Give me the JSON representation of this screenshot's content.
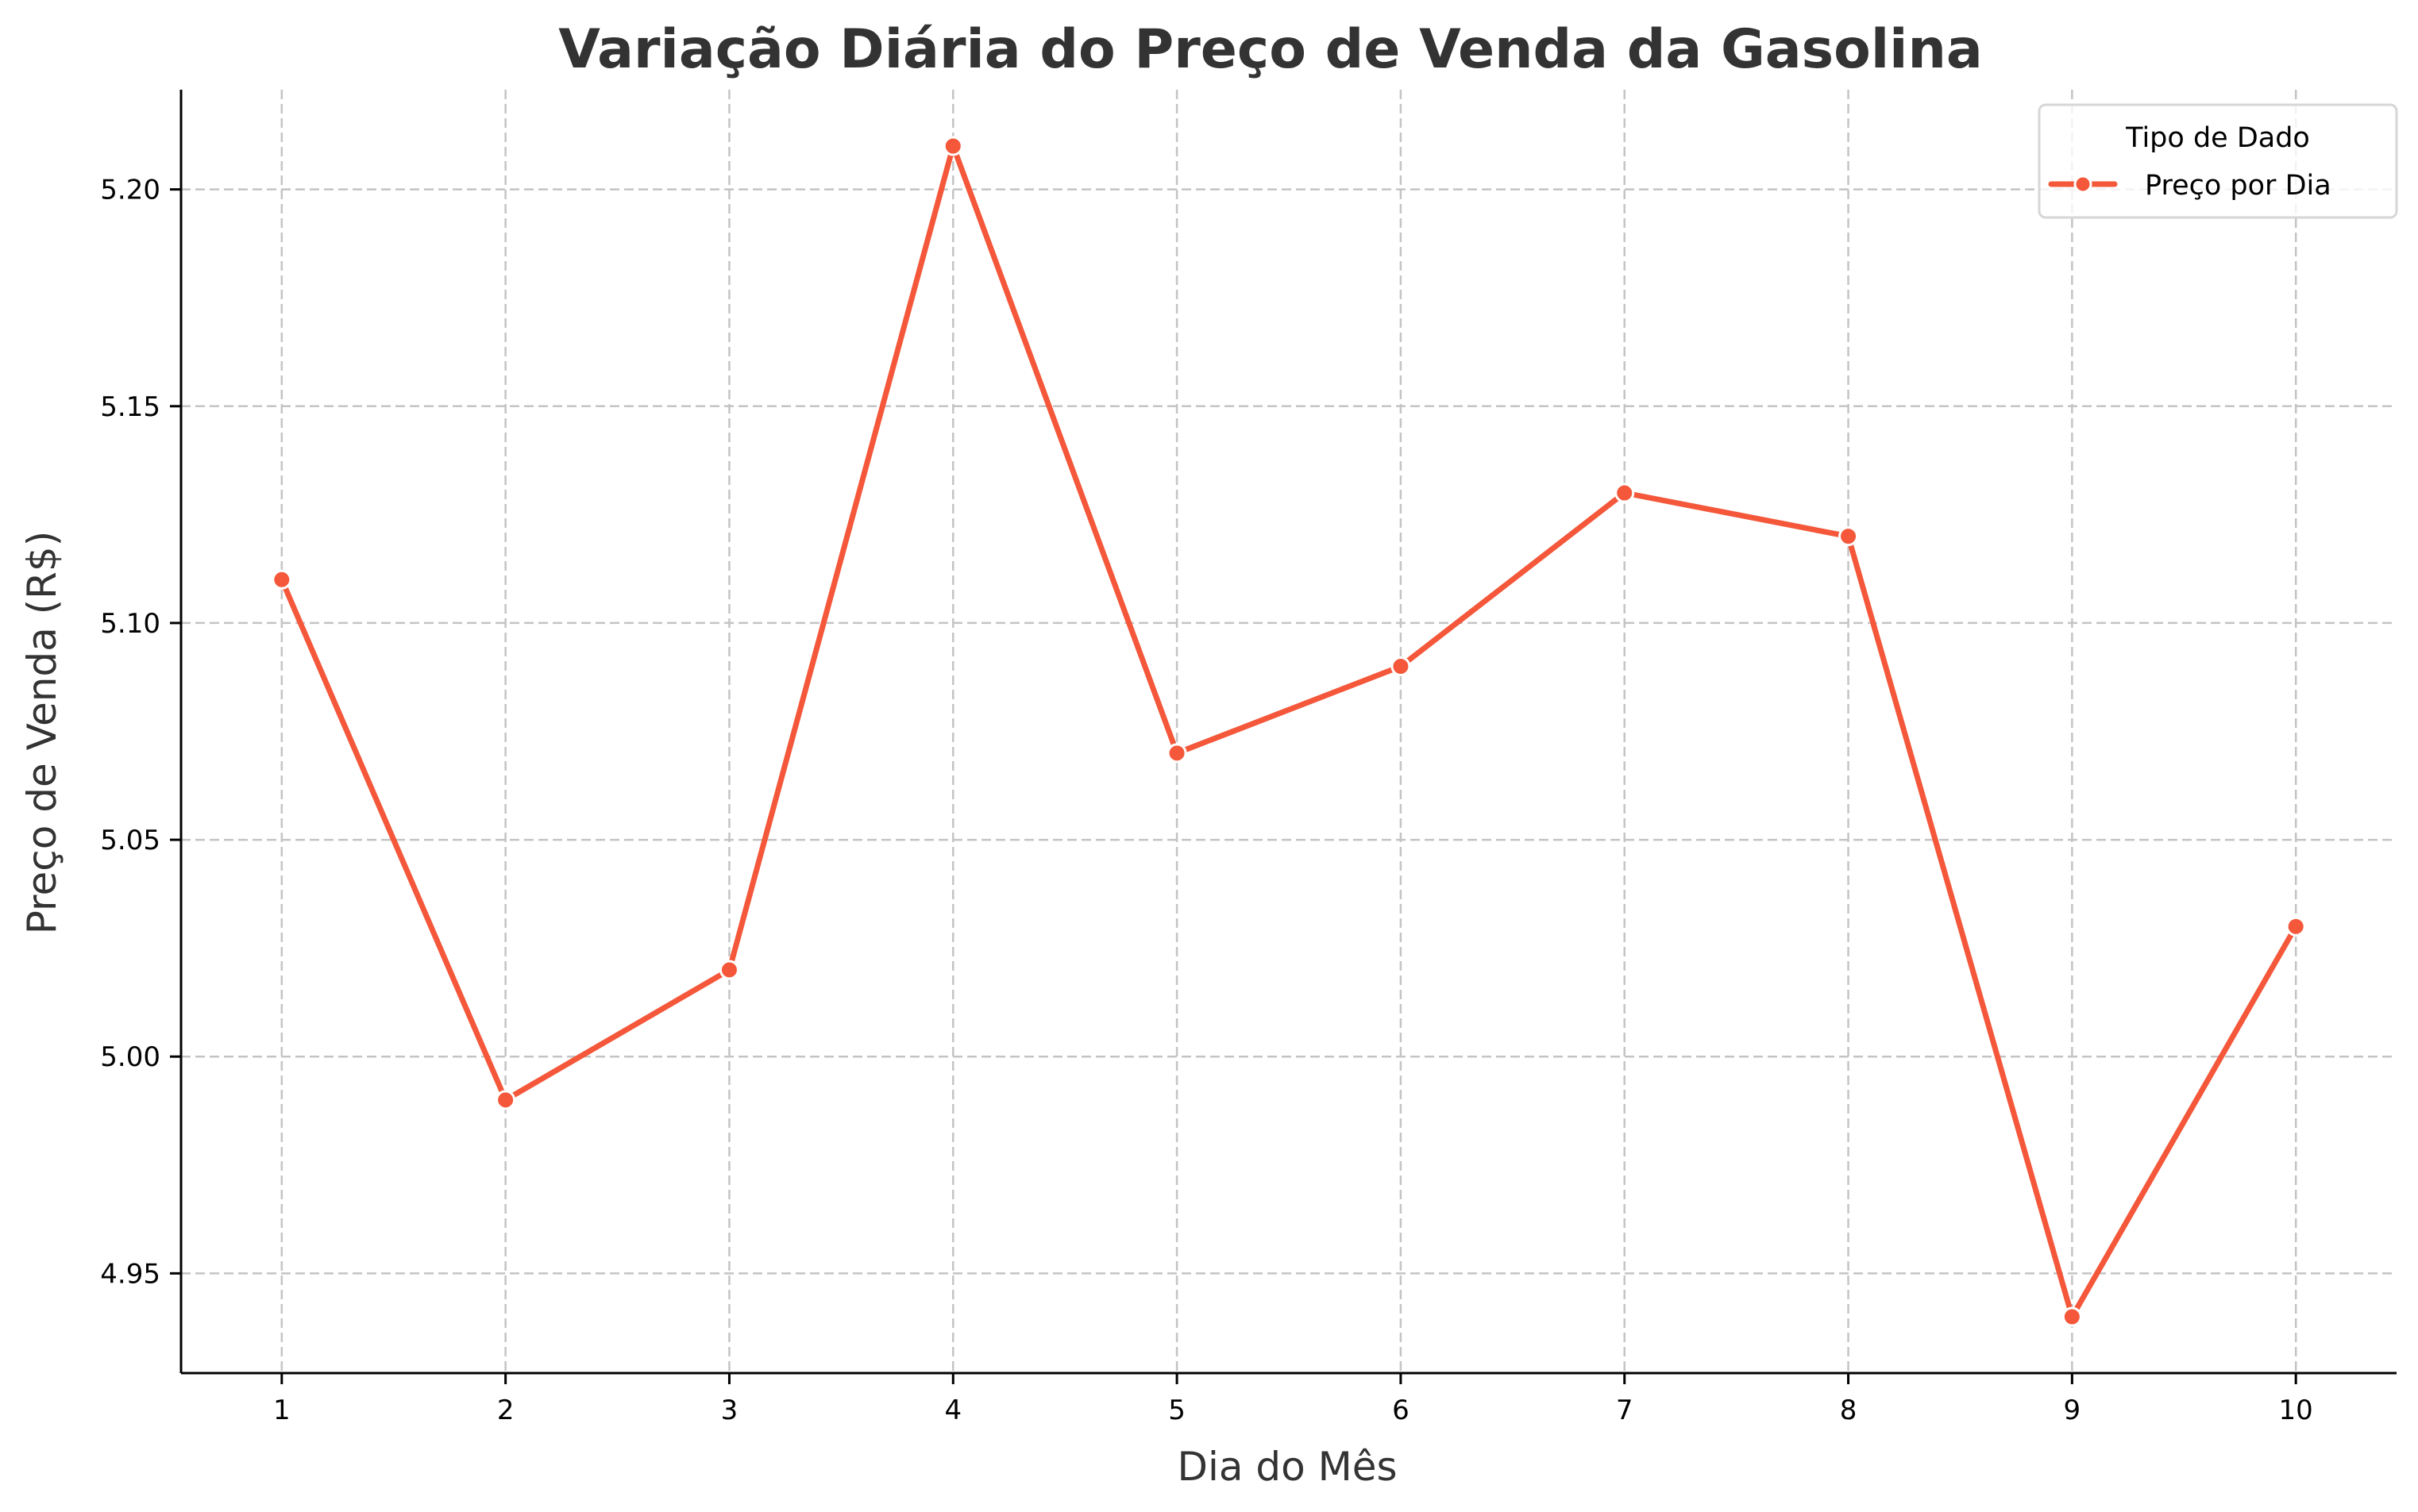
{
  "chart_data": {
    "type": "line",
    "title": "Variação Diária do Preço de Venda da Gasolina",
    "xlabel": "Dia do Mês",
    "ylabel": "Preço de Venda (R$)",
    "x": [
      1,
      2,
      3,
      4,
      5,
      6,
      7,
      8,
      9,
      10
    ],
    "x_tick_labels": [
      "1",
      "2",
      "3",
      "4",
      "5",
      "6",
      "7",
      "8",
      "9",
      "10"
    ],
    "xlim": [
      0.55,
      10.45
    ],
    "y_ticks": [
      4.95,
      5.0,
      5.05,
      5.1,
      5.15,
      5.2
    ],
    "y_tick_labels": [
      "4.95",
      "5.00",
      "5.05",
      "5.10",
      "5.15",
      "5.20"
    ],
    "ylim": [
      4.927,
      5.223
    ],
    "grid": true,
    "series": [
      {
        "name": "Preço por Dia",
        "values": [
          5.11,
          4.99,
          5.02,
          5.21,
          5.07,
          5.09,
          5.13,
          5.12,
          4.94,
          5.03
        ],
        "color": "#f4573a",
        "marker": "circle"
      }
    ],
    "legend": {
      "title": "Tipo de Dado",
      "placement": "top-right"
    }
  }
}
